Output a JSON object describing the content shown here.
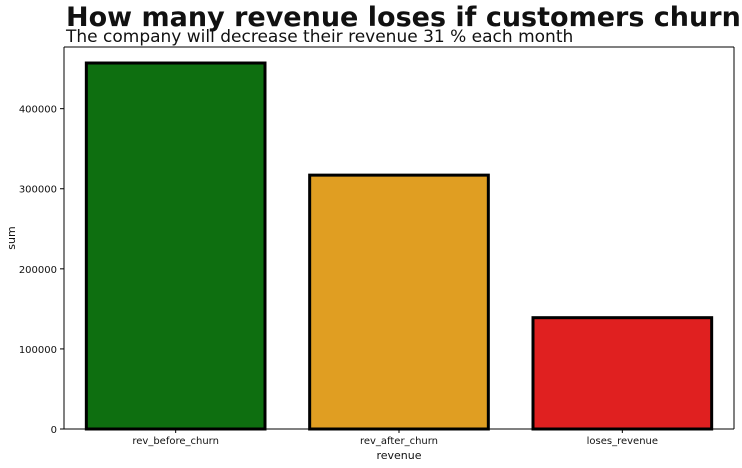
{
  "chart_data": {
    "type": "bar",
    "title": "How many revenue loses if customers churn?",
    "subtitle": "The company will decrease their revenue 31 % each month",
    "xlabel": "revenue",
    "ylabel": "sum",
    "categories": [
      "rev_before_churn",
      "rev_after_churn",
      "loses_revenue"
    ],
    "values": [
      457000,
      317000,
      139000
    ],
    "colors": [
      "#0e6f10",
      "#e09e22",
      "#e02020"
    ],
    "edge_color": "#000000",
    "ylim": [
      0,
      477000
    ],
    "yticks": [
      0,
      100000,
      200000,
      300000,
      400000
    ],
    "ytick_labels": [
      "0",
      "100000",
      "200000",
      "300000",
      "400000"
    ],
    "grid": false,
    "legend": "none"
  }
}
